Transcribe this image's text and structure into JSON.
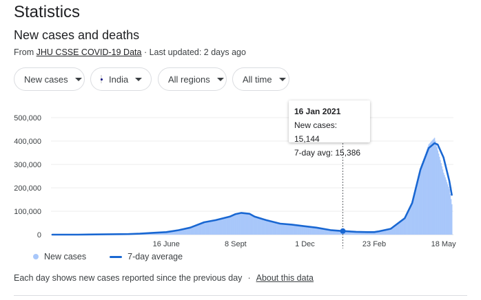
{
  "header": {
    "title": "Statistics",
    "subtitle": "New cases and deaths",
    "source_prefix": "From ",
    "source_link": "JHU CSSE COVID-19 Data",
    "source_suffix": " · Last updated: 2 days ago"
  },
  "filters": [
    {
      "label": "New cases",
      "icon": "caret-down-icon"
    },
    {
      "label": "India",
      "icon": "india-flag-icon"
    },
    {
      "label": "All regions",
      "icon": "caret-down-icon"
    },
    {
      "label": "All time",
      "icon": "caret-down-icon"
    }
  ],
  "tooltip": {
    "date": "16 Jan 2021",
    "cases_line": "New cases: 15,144",
    "avg_line": "7-day avg: 15,386"
  },
  "legend": {
    "bars": "New cases",
    "line": "7-day average"
  },
  "footer": {
    "note": "Each day shows new cases reported since the previous day",
    "separator": "·",
    "link": "About this data"
  },
  "colors": {
    "bars": "#a8c7fa",
    "line": "#1967d2",
    "grid": "#ececec",
    "axis_text": "#3c4043"
  },
  "chart_data": {
    "type": "bar",
    "title": "",
    "xlabel": "",
    "ylabel": "",
    "ylim": [
      0,
      500000
    ],
    "yticks": [
      0,
      100000,
      200000,
      300000,
      400000,
      500000
    ],
    "ytick_labels": [
      "0",
      "100,000",
      "200,000",
      "300,000",
      "400,000",
      "500,000"
    ],
    "xtick_labels": [
      "16 June",
      "8 Sept",
      "1 Dec",
      "23 Feb",
      "18 May"
    ],
    "xticks": [
      "2020-06-16",
      "2020-09-08",
      "2020-12-01",
      "2021-02-23",
      "2021-05-18"
    ],
    "x_range": [
      "2020-01-30",
      "2021-05-30"
    ],
    "highlight": {
      "date": "2021-01-16",
      "new_cases": 15144,
      "avg7": 15386
    },
    "series": [
      {
        "name": "New cases",
        "kind": "bar",
        "x": [
          "2020-01-30",
          "2020-03-01",
          "2020-04-01",
          "2020-05-01",
          "2020-05-15",
          "2020-06-01",
          "2020-06-16",
          "2020-07-01",
          "2020-07-15",
          "2020-08-01",
          "2020-08-15",
          "2020-09-01",
          "2020-09-08",
          "2020-09-15",
          "2020-09-25",
          "2020-10-01",
          "2020-10-15",
          "2020-11-01",
          "2020-11-15",
          "2020-12-01",
          "2020-12-15",
          "2021-01-01",
          "2021-01-16",
          "2021-02-01",
          "2021-02-15",
          "2021-02-23",
          "2021-03-01",
          "2021-03-15",
          "2021-04-01",
          "2021-04-10",
          "2021-04-20",
          "2021-04-30",
          "2021-05-07",
          "2021-05-11",
          "2021-05-18",
          "2021-05-25",
          "2021-05-28"
        ],
        "values": [
          0,
          50,
          1500,
          2500,
          4500,
          8500,
          11500,
          20000,
          31000,
          55000,
          64000,
          78000,
          90000,
          94000,
          87000,
          80000,
          64000,
          46000,
          44000,
          37000,
          31000,
          20000,
          15144,
          11500,
          11000,
          11000,
          15000,
          26000,
          72000,
          142000,
          285000,
          386000,
          414000,
          360000,
          265000,
          195000,
          130000
        ]
      },
      {
        "name": "7-day average",
        "kind": "line",
        "x": [
          "2020-01-30",
          "2020-03-01",
          "2020-04-01",
          "2020-05-01",
          "2020-05-15",
          "2020-06-01",
          "2020-06-16",
          "2020-07-01",
          "2020-07-15",
          "2020-08-01",
          "2020-08-15",
          "2020-09-01",
          "2020-09-08",
          "2020-09-15",
          "2020-09-25",
          "2020-10-01",
          "2020-10-15",
          "2020-11-01",
          "2020-11-15",
          "2020-12-01",
          "2020-12-15",
          "2021-01-01",
          "2021-01-16",
          "2021-02-01",
          "2021-02-15",
          "2021-02-23",
          "2021-03-01",
          "2021-03-15",
          "2021-04-01",
          "2021-04-10",
          "2021-04-20",
          "2021-04-30",
          "2021-05-07",
          "2021-05-11",
          "2021-05-18",
          "2021-05-25",
          "2021-05-28"
        ],
        "values": [
          0,
          40,
          1300,
          2300,
          4200,
          8000,
          11000,
          19000,
          30000,
          53000,
          62000,
          77000,
          88000,
          93000,
          89000,
          77000,
          62000,
          47000,
          43000,
          36000,
          30000,
          19500,
          15386,
          12000,
          11000,
          11000,
          14500,
          25000,
          70000,
          135000,
          278000,
          370000,
          391000,
          385000,
          330000,
          230000,
          170000
        ]
      }
    ]
  }
}
